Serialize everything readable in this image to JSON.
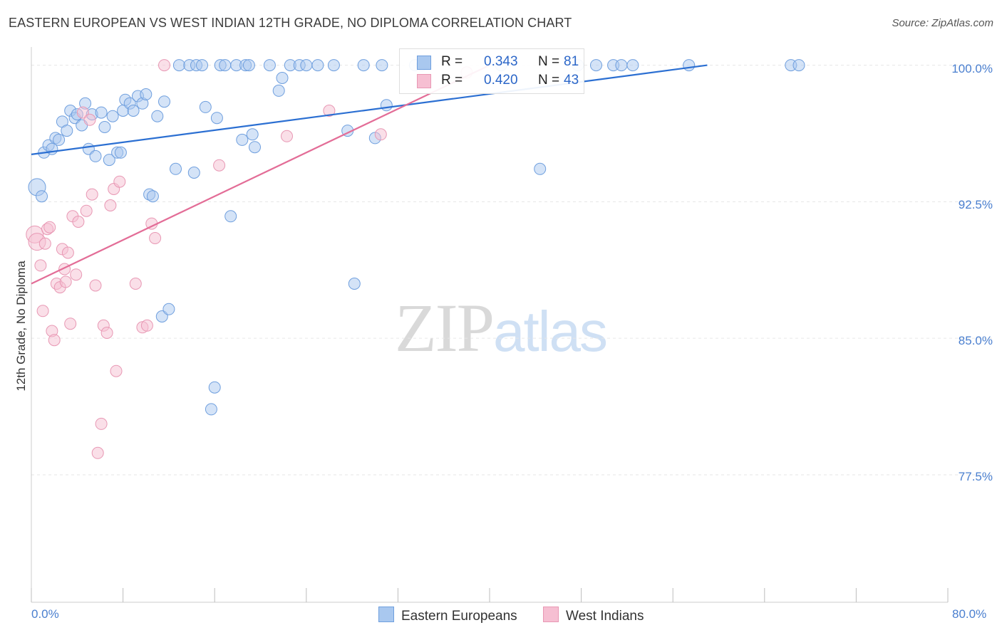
{
  "title": "EASTERN EUROPEAN VS WEST INDIAN 12TH GRADE, NO DIPLOMA CORRELATION CHART",
  "source": "Source: ZipAtlas.com",
  "watermark": {
    "zip": "ZIP",
    "atlas": "atlas"
  },
  "colors": {
    "eastern_fill": "#a9c8ef",
    "eastern_stroke": "#6f9fde",
    "eastern_line": "#2b6fd2",
    "west_fill": "#f6bfd2",
    "west_stroke": "#e898b4",
    "west_line": "#e36d97",
    "tick_text": "#4a7fcf",
    "grid": "#e6e6e6"
  },
  "legend": {
    "rows": [
      {
        "r_label": "R =",
        "r_value": "0.343",
        "n_label": "N =",
        "n_value": "81"
      },
      {
        "r_label": "R =",
        "r_value": "0.420",
        "n_label": "N =",
        "n_value": "43"
      }
    ]
  },
  "bottom_legend": {
    "eastern": "Eastern Europeans",
    "west": "West Indians"
  },
  "chart_data": {
    "type": "scatter",
    "title": "EASTERN EUROPEAN VS WEST INDIAN 12TH GRADE, NO DIPLOMA CORRELATION CHART",
    "xlabel": "",
    "ylabel": "12th Grade, No Diploma",
    "xlim": [
      0,
      80
    ],
    "ylim": [
      70.5,
      101
    ],
    "y_ticks": [
      100.0,
      92.5,
      85.0,
      77.5
    ],
    "y_tick_labels": [
      "100.0%",
      "92.5%",
      "85.0%",
      "77.5%"
    ],
    "x_tick_labels": [
      "0.0%",
      "80.0%"
    ],
    "x_minor_ticks": [
      0,
      8,
      16,
      24,
      32,
      40,
      48,
      56,
      64,
      72,
      80
    ],
    "grid": true,
    "series": [
      {
        "name": "Eastern Europeans",
        "R": 0.343,
        "N": 81,
        "trend": {
          "x": [
            0,
            59
          ],
          "y": [
            95.1,
            100.0
          ]
        },
        "points": [
          [
            0.5,
            93.3
          ],
          [
            0.9,
            92.8
          ],
          [
            1.1,
            95.2
          ],
          [
            1.5,
            95.6
          ],
          [
            1.8,
            95.4
          ],
          [
            2.1,
            96.0
          ],
          [
            2.4,
            95.9
          ],
          [
            2.7,
            96.9
          ],
          [
            3.1,
            96.4
          ],
          [
            3.4,
            97.5
          ],
          [
            3.8,
            97.1
          ],
          [
            4.0,
            97.3
          ],
          [
            4.4,
            96.7
          ],
          [
            4.7,
            97.9
          ],
          [
            5.0,
            95.4
          ],
          [
            5.3,
            97.3
          ],
          [
            5.6,
            95.0
          ],
          [
            6.1,
            97.4
          ],
          [
            6.4,
            96.6
          ],
          [
            6.8,
            94.8
          ],
          [
            7.1,
            97.2
          ],
          [
            7.5,
            95.2
          ],
          [
            7.8,
            95.2
          ],
          [
            8.0,
            97.5
          ],
          [
            8.2,
            98.1
          ],
          [
            8.6,
            97.9
          ],
          [
            8.9,
            97.5
          ],
          [
            9.3,
            98.3
          ],
          [
            9.7,
            97.9
          ],
          [
            10.0,
            98.4
          ],
          [
            10.3,
            92.9
          ],
          [
            10.6,
            92.8
          ],
          [
            11.0,
            97.2
          ],
          [
            11.4,
            86.2
          ],
          [
            11.6,
            98.0
          ],
          [
            12.0,
            86.6
          ],
          [
            12.6,
            94.3
          ],
          [
            12.9,
            100.0
          ],
          [
            13.8,
            100.0
          ],
          [
            14.2,
            94.1
          ],
          [
            14.4,
            100.0
          ],
          [
            14.9,
            100.0
          ],
          [
            15.2,
            97.7
          ],
          [
            15.7,
            81.1
          ],
          [
            16.0,
            82.3
          ],
          [
            16.2,
            97.1
          ],
          [
            16.5,
            100.0
          ],
          [
            16.9,
            100.0
          ],
          [
            17.4,
            91.7
          ],
          [
            17.9,
            100.0
          ],
          [
            18.4,
            95.9
          ],
          [
            18.7,
            100.0
          ],
          [
            19.0,
            100.0
          ],
          [
            19.3,
            96.2
          ],
          [
            19.5,
            95.5
          ],
          [
            20.8,
            100.0
          ],
          [
            21.6,
            98.6
          ],
          [
            21.9,
            99.3
          ],
          [
            22.6,
            100.0
          ],
          [
            23.4,
            100.0
          ],
          [
            24.0,
            100.0
          ],
          [
            25.0,
            100.0
          ],
          [
            26.4,
            100.0
          ],
          [
            27.6,
            96.4
          ],
          [
            28.2,
            88.0
          ],
          [
            29.0,
            100.0
          ],
          [
            30.0,
            96.0
          ],
          [
            30.6,
            100.0
          ],
          [
            31.0,
            97.8
          ],
          [
            33.5,
            100.0
          ],
          [
            34.1,
            100.0
          ],
          [
            41.0,
            100.0
          ],
          [
            44.4,
            94.3
          ],
          [
            47.7,
            100.0
          ],
          [
            49.3,
            100.0
          ],
          [
            50.8,
            100.0
          ],
          [
            51.5,
            100.0
          ],
          [
            52.5,
            100.0
          ],
          [
            57.4,
            100.0
          ],
          [
            66.3,
            100.0
          ],
          [
            67.0,
            100.0
          ]
        ]
      },
      {
        "name": "West Indians",
        "R": 0.42,
        "N": 43,
        "trend": {
          "x": [
            0,
            40
          ],
          "y": [
            88.0,
            100.0
          ]
        },
        "points": [
          [
            0.3,
            90.7
          ],
          [
            0.5,
            90.3
          ],
          [
            0.8,
            89.0
          ],
          [
            1.0,
            86.5
          ],
          [
            1.2,
            90.2
          ],
          [
            1.4,
            91.0
          ],
          [
            1.6,
            91.1
          ],
          [
            1.8,
            85.4
          ],
          [
            2.0,
            84.9
          ],
          [
            2.2,
            88.0
          ],
          [
            2.5,
            87.8
          ],
          [
            2.7,
            89.9
          ],
          [
            2.9,
            88.8
          ],
          [
            3.0,
            88.1
          ],
          [
            3.2,
            89.7
          ],
          [
            3.4,
            85.8
          ],
          [
            3.6,
            91.7
          ],
          [
            3.9,
            88.5
          ],
          [
            4.1,
            91.4
          ],
          [
            4.5,
            97.4
          ],
          [
            4.8,
            92.0
          ],
          [
            5.1,
            97.0
          ],
          [
            5.3,
            92.9
          ],
          [
            5.6,
            87.9
          ],
          [
            5.8,
            78.7
          ],
          [
            6.1,
            80.3
          ],
          [
            6.3,
            85.7
          ],
          [
            6.6,
            85.3
          ],
          [
            6.9,
            92.3
          ],
          [
            7.2,
            93.2
          ],
          [
            7.4,
            83.2
          ],
          [
            7.7,
            93.6
          ],
          [
            9.1,
            88.0
          ],
          [
            9.7,
            85.6
          ],
          [
            10.1,
            85.7
          ],
          [
            10.5,
            91.3
          ],
          [
            10.8,
            90.5
          ],
          [
            11.6,
            100.0
          ],
          [
            16.4,
            94.5
          ],
          [
            22.3,
            96.1
          ],
          [
            26.0,
            97.5
          ],
          [
            30.5,
            96.2
          ],
          [
            38.0,
            99.6
          ]
        ]
      }
    ]
  }
}
